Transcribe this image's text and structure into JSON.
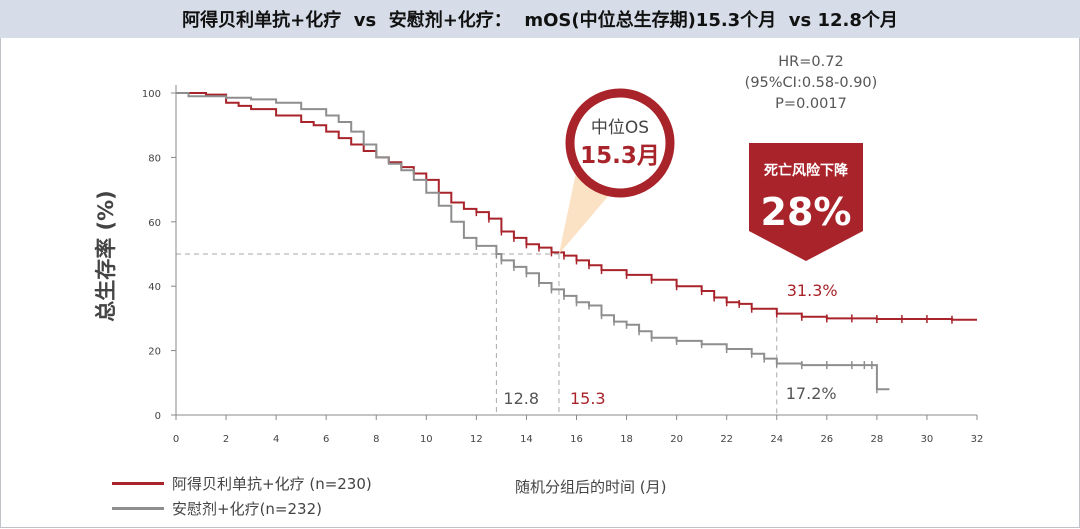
{
  "header": {
    "title": "阿得贝利单抗+化疗  vs  安慰剂+化疗：  mOS(中位总生存期)15.3个月  vs 12.8个月"
  },
  "stats": {
    "hr": "HR=0.72",
    "ci": "(95%CI:0.58-0.90)",
    "p": "P=0.0017"
  },
  "callout": {
    "label": "中位OS",
    "value": "15.3月"
  },
  "badge": {
    "label": "死亡风险下降",
    "value": "28%"
  },
  "annotations": {
    "median_placebo": "12.8",
    "median_treatment": "15.3",
    "end_treatment": "31.3%",
    "end_placebo": "17.2%"
  },
  "legend": {
    "treatment": "阿得贝利单抗+化疗 (n=230)",
    "placebo": "安慰剂+化疗(n=232)"
  },
  "colors": {
    "treatment": "#a8232a",
    "placebo": "#8e8e8e",
    "badge": "#a8232a"
  },
  "chart_data": {
    "type": "line",
    "xlabel": "随机分组后的时间 (月)",
    "ylabel": "总生存率 (%)",
    "xlim": [
      0,
      32
    ],
    "ylim": [
      0,
      100
    ],
    "xticks": [
      0,
      2,
      4,
      6,
      8,
      10,
      12,
      14,
      16,
      18,
      20,
      22,
      24,
      26,
      28,
      30,
      32
    ],
    "yticks": [
      0,
      20,
      40,
      60,
      80,
      100
    ],
    "reference_lines": {
      "y": 50,
      "x": [
        12.8,
        15.3,
        24
      ]
    },
    "series": [
      {
        "name": "阿得贝利单抗+化疗 (n=230)",
        "x": [
          0,
          1.2,
          2,
          2.5,
          3,
          4,
          5,
          5.5,
          6,
          6.5,
          7,
          7.5,
          8,
          8.5,
          9,
          9.5,
          10,
          10.5,
          11,
          11.5,
          12,
          12.5,
          13,
          13.5,
          14,
          14.5,
          15,
          15.5,
          16,
          16.5,
          17,
          18,
          19,
          20,
          21,
          21.5,
          22,
          22.5,
          23,
          24,
          25,
          26,
          27,
          28,
          29,
          30,
          31,
          32
        ],
        "y": [
          100,
          99.5,
          97,
          96,
          95,
          93,
          91,
          90,
          88,
          86,
          84,
          82,
          80,
          78.5,
          77,
          75,
          73,
          69,
          66,
          64,
          63,
          61,
          57,
          55,
          53,
          52,
          50.5,
          49.5,
          48,
          46.5,
          45,
          43.5,
          42,
          40,
          38.5,
          36.5,
          35,
          34.5,
          33,
          31.5,
          30.5,
          30,
          30,
          29.8,
          29.8,
          29.8,
          29.6,
          29.6
        ]
      },
      {
        "name": "安慰剂+化疗(n=232)",
        "x": [
          0,
          0.5,
          1,
          2,
          3,
          4,
          5,
          6,
          6.5,
          7,
          7.5,
          8,
          8.5,
          9,
          9.5,
          10,
          10.5,
          11,
          11.5,
          12,
          12.8,
          13,
          13.5,
          14,
          14.5,
          15,
          15.5,
          16,
          16.5,
          17,
          17.5,
          18,
          18.5,
          19,
          20,
          21,
          22,
          23,
          23.5,
          24,
          25,
          26,
          27,
          27.5,
          27.8,
          28,
          28.5
        ],
        "y": [
          100,
          99,
          99,
          98.5,
          98,
          97,
          95,
          93,
          91,
          88,
          84,
          80,
          78,
          76,
          73,
          69,
          65,
          60,
          55,
          52.5,
          50,
          48,
          46,
          44,
          41,
          39,
          37,
          35,
          34,
          31,
          29,
          28,
          26,
          24,
          23,
          22,
          20.5,
          19,
          17.5,
          16,
          15.5,
          15.5,
          15.5,
          15.5,
          15.5,
          8,
          8
        ]
      }
    ]
  }
}
